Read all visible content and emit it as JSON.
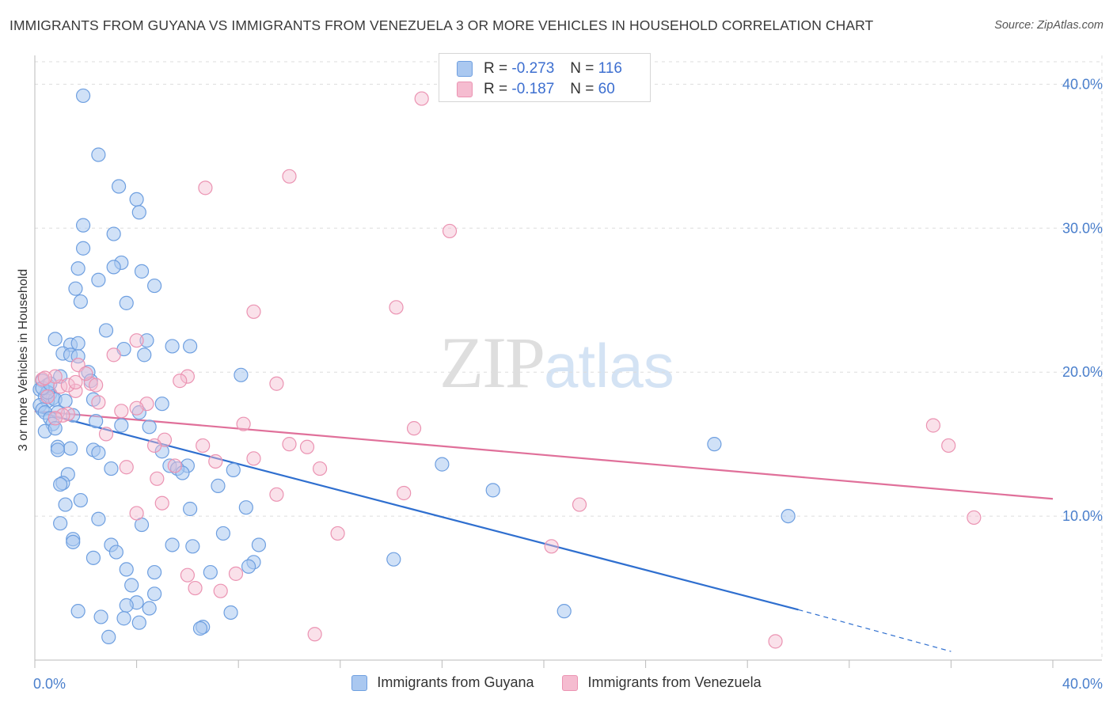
{
  "header": {
    "title": "IMMIGRANTS FROM GUYANA VS IMMIGRANTS FROM VENEZUELA 3 OR MORE VEHICLES IN HOUSEHOLD CORRELATION CHART",
    "source": "Source: ZipAtlas.com"
  },
  "watermark": {
    "zip": "ZIP",
    "atlas": "atlas"
  },
  "legend_top": {
    "rows": [
      {
        "r_label": "R = ",
        "r_value": "-0.273",
        "n_label": "N = ",
        "n_value": "116"
      },
      {
        "r_label": "R = ",
        "r_value": "-0.187",
        "n_label": "N = ",
        "n_value": "60"
      }
    ]
  },
  "legend_bottom": {
    "items": [
      {
        "label": "Immigrants from Guyana"
      },
      {
        "label": "Immigrants from Venezuela"
      }
    ]
  },
  "colors": {
    "guyana_fill": "#aac8f0",
    "guyana_stroke": "#6e9fe0",
    "guyana_line": "#2f6fcf",
    "venezuela_fill": "#f5bcd0",
    "venezuela_stroke": "#eb93b2",
    "venezuela_line": "#e0709a",
    "tick_text": "#4a7fcc",
    "grid": "#dddddd"
  },
  "chart_data": {
    "type": "scatter",
    "title": "IMMIGRANTS FROM GUYANA VS IMMIGRANTS FROM VENEZUELA 3 OR MORE VEHICLES IN HOUSEHOLD CORRELATION CHART",
    "xlabel": "",
    "ylabel": "3 or more Vehicles in Household",
    "xlim": [
      0,
      40
    ],
    "ylim": [
      0,
      42
    ],
    "x_tick_labels": [
      "0.0%",
      "40.0%"
    ],
    "y_ticks": [
      10,
      20,
      30,
      40
    ],
    "y_tick_labels": [
      "10.0%",
      "20.0%",
      "30.0%",
      "40.0%"
    ],
    "grid": true,
    "legend_position": "top-center",
    "series": [
      {
        "name": "Immigrants from Guyana",
        "R": -0.273,
        "N": 116,
        "trend": {
          "x": [
            0,
            30
          ],
          "y": [
            17.3,
            3.5
          ],
          "dashed_to": [
            36,
            0.6
          ]
        },
        "points": [
          [
            1.9,
            39.2
          ],
          [
            2.5,
            35.1
          ],
          [
            3.3,
            32.9
          ],
          [
            4.0,
            32.0
          ],
          [
            4.1,
            31.1
          ],
          [
            1.9,
            30.2
          ],
          [
            3.1,
            29.6
          ],
          [
            1.9,
            28.6
          ],
          [
            3.4,
            27.6
          ],
          [
            3.1,
            27.3
          ],
          [
            1.7,
            27.2
          ],
          [
            4.2,
            27.0
          ],
          [
            2.5,
            26.4
          ],
          [
            4.7,
            26.0
          ],
          [
            1.6,
            25.8
          ],
          [
            1.8,
            24.9
          ],
          [
            3.6,
            24.8
          ],
          [
            2.8,
            22.9
          ],
          [
            0.8,
            22.3
          ],
          [
            4.4,
            22.2
          ],
          [
            1.4,
            21.9
          ],
          [
            1.7,
            22.0
          ],
          [
            5.4,
            21.8
          ],
          [
            6.1,
            21.8
          ],
          [
            3.5,
            21.6
          ],
          [
            1.1,
            21.3
          ],
          [
            1.4,
            21.2
          ],
          [
            1.7,
            21.1
          ],
          [
            4.3,
            21.2
          ],
          [
            2.1,
            20.0
          ],
          [
            1.0,
            19.7
          ],
          [
            8.1,
            19.8
          ],
          [
            0.3,
            19.4
          ],
          [
            0.5,
            19.1
          ],
          [
            2.2,
            19.4
          ],
          [
            0.2,
            18.8
          ],
          [
            0.6,
            18.5
          ],
          [
            0.4,
            18.3
          ],
          [
            0.7,
            18.2
          ],
          [
            0.5,
            18.0
          ],
          [
            0.8,
            18.1
          ],
          [
            1.2,
            18.0
          ],
          [
            2.3,
            18.1
          ],
          [
            5.0,
            17.8
          ],
          [
            0.2,
            17.7
          ],
          [
            0.3,
            17.4
          ],
          [
            0.4,
            17.2
          ],
          [
            0.9,
            17.2
          ],
          [
            1.5,
            17.0
          ],
          [
            4.1,
            17.2
          ],
          [
            0.6,
            16.8
          ],
          [
            2.4,
            16.6
          ],
          [
            0.7,
            16.4
          ],
          [
            3.4,
            16.3
          ],
          [
            4.5,
            16.2
          ],
          [
            0.4,
            15.9
          ],
          [
            0.8,
            16.1
          ],
          [
            0.9,
            14.8
          ],
          [
            1.4,
            14.7
          ],
          [
            2.3,
            14.6
          ],
          [
            2.5,
            14.4
          ],
          [
            5.0,
            14.5
          ],
          [
            0.9,
            14.6
          ],
          [
            5.3,
            13.5
          ],
          [
            6.0,
            13.5
          ],
          [
            3.0,
            13.3
          ],
          [
            5.6,
            13.3
          ],
          [
            7.8,
            13.2
          ],
          [
            1.3,
            12.9
          ],
          [
            5.8,
            13.0
          ],
          [
            1.1,
            12.3
          ],
          [
            1.0,
            12.2
          ],
          [
            7.2,
            12.1
          ],
          [
            16.0,
            13.6
          ],
          [
            18.0,
            11.8
          ],
          [
            1.8,
            11.1
          ],
          [
            1.2,
            10.8
          ],
          [
            6.1,
            10.5
          ],
          [
            8.3,
            10.6
          ],
          [
            2.5,
            9.8
          ],
          [
            1.0,
            9.5
          ],
          [
            4.2,
            9.4
          ],
          [
            1.5,
            8.4
          ],
          [
            1.5,
            8.2
          ],
          [
            7.4,
            8.8
          ],
          [
            3.0,
            8.0
          ],
          [
            5.4,
            8.0
          ],
          [
            6.2,
            7.9
          ],
          [
            8.8,
            8.0
          ],
          [
            3.2,
            7.5
          ],
          [
            8.6,
            6.8
          ],
          [
            2.3,
            7.1
          ],
          [
            4.7,
            6.1
          ],
          [
            3.6,
            6.3
          ],
          [
            6.9,
            6.1
          ],
          [
            8.4,
            6.5
          ],
          [
            14.1,
            7.0
          ],
          [
            3.8,
            5.2
          ],
          [
            4.7,
            4.6
          ],
          [
            4.0,
            4.0
          ],
          [
            3.6,
            3.8
          ],
          [
            4.5,
            3.6
          ],
          [
            1.7,
            3.4
          ],
          [
            7.7,
            3.3
          ],
          [
            3.5,
            2.9
          ],
          [
            2.6,
            3.0
          ],
          [
            4.1,
            2.6
          ],
          [
            6.6,
            2.3
          ],
          [
            6.5,
            2.2
          ],
          [
            2.9,
            1.6
          ],
          [
            26.7,
            15.0
          ],
          [
            29.6,
            10.0
          ],
          [
            20.8,
            3.4
          ],
          [
            0.5,
            18.6
          ],
          [
            0.3,
            18.9
          ],
          [
            0.6,
            19.2
          ]
        ]
      },
      {
        "name": "Immigrants from Venezuela",
        "R": -0.187,
        "N": 60,
        "trend": {
          "x": [
            0,
            40
          ],
          "y": [
            17.3,
            11.2
          ]
        },
        "points": [
          [
            15.2,
            39.0
          ],
          [
            10.0,
            33.6
          ],
          [
            6.7,
            32.8
          ],
          [
            16.3,
            29.8
          ],
          [
            8.6,
            24.2
          ],
          [
            14.2,
            24.5
          ],
          [
            4.0,
            22.2
          ],
          [
            3.1,
            21.2
          ],
          [
            6.0,
            19.7
          ],
          [
            5.7,
            19.4
          ],
          [
            9.5,
            19.2
          ],
          [
            2.2,
            19.2
          ],
          [
            1.6,
            18.7
          ],
          [
            0.5,
            18.3
          ],
          [
            1.7,
            20.5
          ],
          [
            1.0,
            19.0
          ],
          [
            0.3,
            19.5
          ],
          [
            0.8,
            19.7
          ],
          [
            1.3,
            19.1
          ],
          [
            2.4,
            19.1
          ],
          [
            4.4,
            17.8
          ],
          [
            2.5,
            17.9
          ],
          [
            1.3,
            17.1
          ],
          [
            1.1,
            17.0
          ],
          [
            0.8,
            16.8
          ],
          [
            3.4,
            17.3
          ],
          [
            4.0,
            17.5
          ],
          [
            8.2,
            16.4
          ],
          [
            14.9,
            16.1
          ],
          [
            2.8,
            15.7
          ],
          [
            5.1,
            15.3
          ],
          [
            4.7,
            14.9
          ],
          [
            6.6,
            14.9
          ],
          [
            10.0,
            15.0
          ],
          [
            10.7,
            14.8
          ],
          [
            8.6,
            14.0
          ],
          [
            7.1,
            13.8
          ],
          [
            3.6,
            13.4
          ],
          [
            5.5,
            13.5
          ],
          [
            11.2,
            13.3
          ],
          [
            4.8,
            12.6
          ],
          [
            14.5,
            11.6
          ],
          [
            9.5,
            11.5
          ],
          [
            5.0,
            10.9
          ],
          [
            4.0,
            10.2
          ],
          [
            21.4,
            10.8
          ],
          [
            11.9,
            8.8
          ],
          [
            20.3,
            7.9
          ],
          [
            6.0,
            5.9
          ],
          [
            6.3,
            5.0
          ],
          [
            7.3,
            4.8
          ],
          [
            7.9,
            6.0
          ],
          [
            11.0,
            1.8
          ],
          [
            29.1,
            1.3
          ],
          [
            35.3,
            16.3
          ],
          [
            35.9,
            14.9
          ],
          [
            36.9,
            9.9
          ],
          [
            0.4,
            19.6
          ],
          [
            1.6,
            19.3
          ],
          [
            2.0,
            19.9
          ]
        ]
      }
    ]
  }
}
